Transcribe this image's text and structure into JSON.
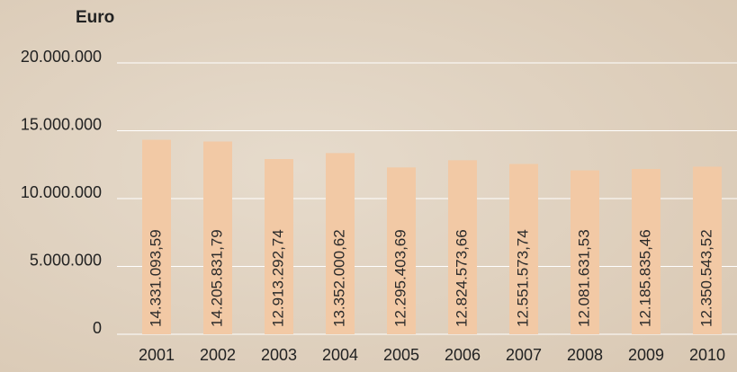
{
  "chart_data": {
    "type": "bar",
    "y_axis_label": "Euro",
    "categories": [
      "2001",
      "2002",
      "2003",
      "2004",
      "2005",
      "2006",
      "2007",
      "2008",
      "2009",
      "2010"
    ],
    "values": [
      14331093.59,
      14205831.79,
      12913292.74,
      13352000.62,
      12295403.69,
      12824573.66,
      12551573.74,
      12081631.53,
      12185835.46,
      12350543.52
    ],
    "value_labels": [
      "14.331.093,59",
      "14.205.831,79",
      "12.913.292,74",
      "13.352.000,62",
      "12.295.403,69",
      "12.824.573,66",
      "12.551.573,74",
      "12.081.631,53",
      "12.185.835,46",
      "12.350.543,52"
    ],
    "color": "#f2c9a5",
    "ylim": [
      0,
      20000000
    ],
    "yticks": [
      0,
      {
        "value": 5000000,
        "label": "5.000.000"
      },
      {
        "value": 10000000,
        "label": "10.000.000"
      },
      {
        "value": 15000000,
        "label": "15.000.000"
      },
      {
        "value": 20000000,
        "label": "20.000.000"
      }
    ],
    "grid": true
  }
}
